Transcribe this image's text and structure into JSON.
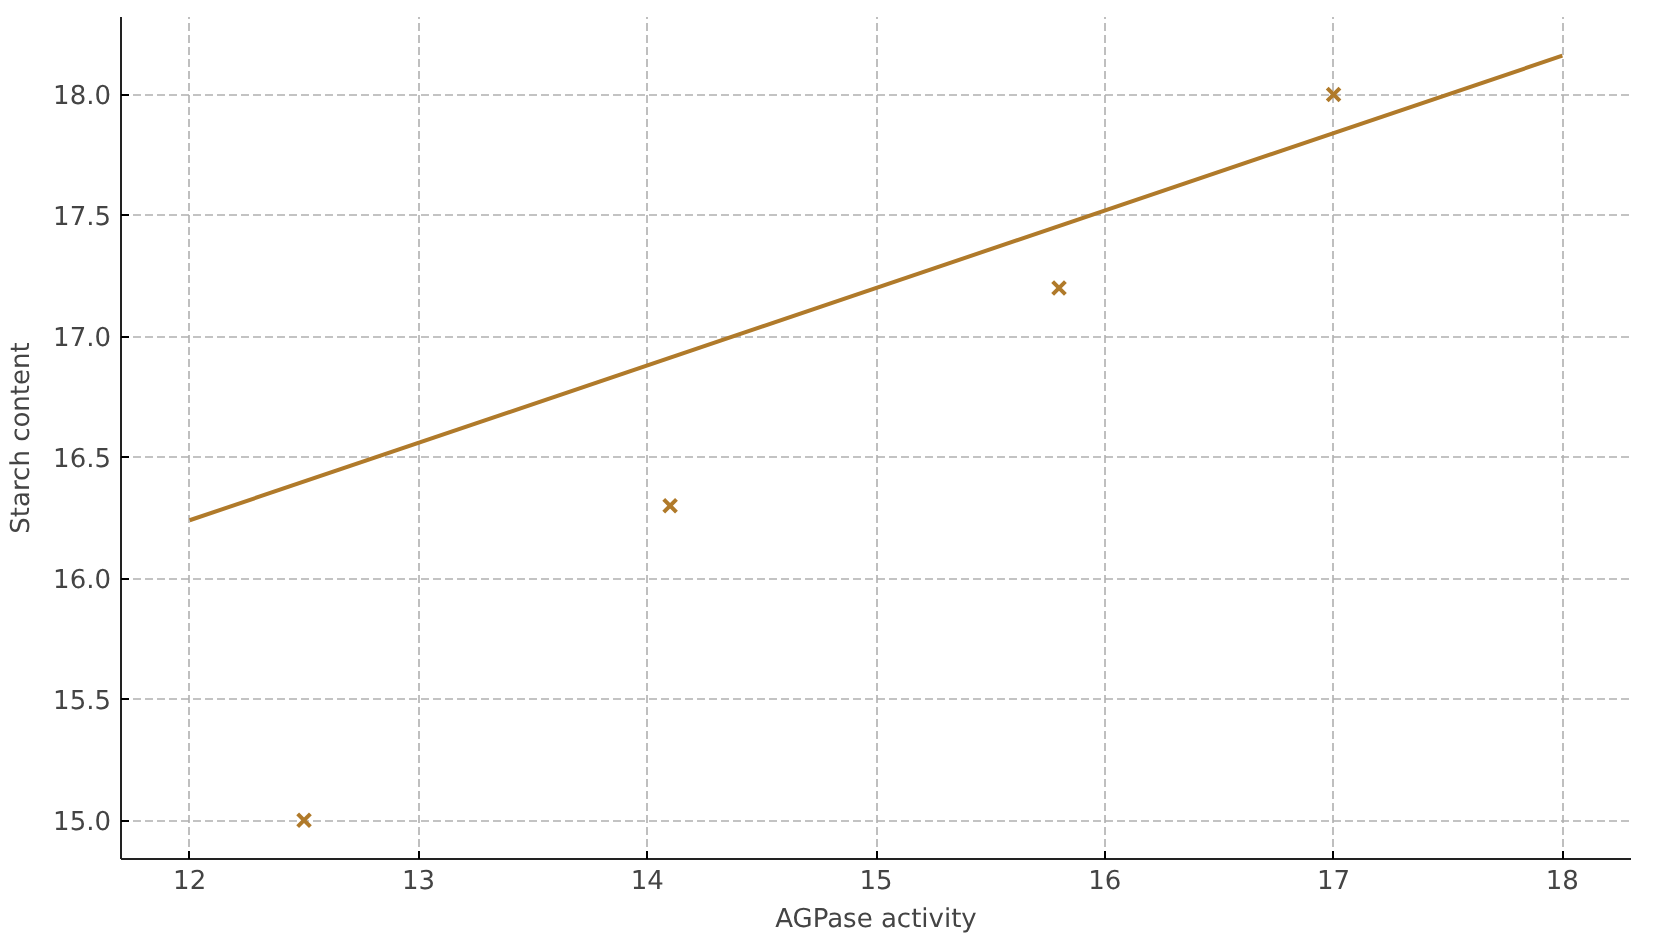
{
  "chart_data": {
    "type": "scatter",
    "xlabel": "AGPase activity",
    "ylabel": "Starch content",
    "x": [
      12.5,
      14.1,
      15.8,
      17.0
    ],
    "series": [
      {
        "color": "#b07a2a",
        "marker": "cross",
        "values": [
          15.0,
          16.3,
          17.2,
          18.0
        ]
      },
      {
        "type": "line",
        "color": "#b07a2a",
        "line_style": "solid",
        "x": [
          12,
          18
        ],
        "values": [
          16.24,
          18.16
        ]
      }
    ],
    "xlim": [
      11.7,
      18.3
    ],
    "ylim": [
      14.84,
      18.32
    ],
    "xticks": [
      12,
      13,
      14,
      15,
      16,
      17,
      18
    ],
    "yticks": [
      {
        "value": 15.0,
        "label": "15.0"
      },
      {
        "value": 15.5,
        "label": "15.5"
      },
      {
        "value": 16.0,
        "label": "16.0"
      },
      {
        "value": 16.5,
        "label": "16.5"
      },
      {
        "value": 17.0,
        "label": "17.0"
      },
      {
        "value": 17.5,
        "label": "17.5"
      },
      {
        "value": 18.0,
        "label": "18.0"
      }
    ],
    "grid": true
  }
}
